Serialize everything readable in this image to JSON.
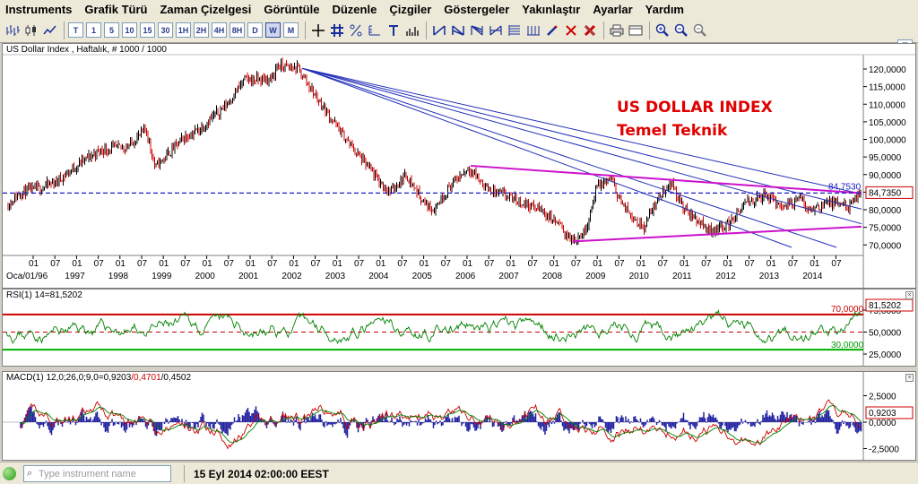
{
  "menu": [
    "Instruments",
    "Grafik Türü",
    "Zaman Çizelgesi",
    "Görüntüle",
    "Düzenle",
    "Çizgiler",
    "Göstergeler",
    "Yakınlaştır",
    "Ayarlar",
    "Yardım"
  ],
  "toolbar": {
    "periods": [
      "T",
      "1",
      "5",
      "10",
      "15",
      "30",
      "1H",
      "2H",
      "4H",
      "8H",
      "D",
      "W",
      "M"
    ],
    "active_period": "W"
  },
  "main_panel": {
    "title": "US Dollar Index , Haftalık, # 1000 / 1000",
    "headline_1": "US DOLLAR INDEX",
    "headline_2": "Temel Teknik",
    "current_price_tag": "84,7350",
    "hline_label": "84,7530",
    "price_axis": [
      "120,0000",
      "115,0000",
      "110,0000",
      "105,0000",
      "100,0000",
      "95,0000",
      "90,0000",
      "85,0000",
      "80,0000",
      "75,0000",
      "70,0000"
    ],
    "month_ticks": [
      "01",
      "07",
      "01",
      "07",
      "01",
      "07",
      "01",
      "07",
      "01",
      "07",
      "01",
      "07",
      "01",
      "07",
      "01",
      "07",
      "01",
      "07",
      "01",
      "07",
      "01",
      "07",
      "01",
      "07",
      "01",
      "07",
      "01",
      "07",
      "01",
      "07",
      "01",
      "07",
      "01",
      "07",
      "01",
      "07",
      "01",
      "07"
    ],
    "year_labels": [
      "Oca/01/96",
      "1997",
      "1998",
      "1999",
      "2000",
      "2001",
      "2002",
      "2003",
      "2004",
      "2005",
      "2006",
      "2007",
      "2008",
      "2009",
      "2010",
      "2011",
      "2012",
      "2013",
      "2014"
    ]
  },
  "rsi_panel": {
    "title": "RSI(1) 14=81,5202",
    "value_tag": "81,5202",
    "level_high": "70,0000",
    "level_low": "30,0000",
    "axis": [
      "75,0000",
      "50,0000",
      "25,0000"
    ]
  },
  "macd_panel": {
    "title_main": "MACD(1) 12,0;26,0;9,0=0,9203",
    "title_signal": "/0,4701",
    "title_hist": "/0,4502",
    "value_tag": "0,9203",
    "axis": [
      "2,5000",
      "0,0000",
      "-2,5000"
    ]
  },
  "status": {
    "search_placeholder": "Type instrument name",
    "timestamp": "15 Eyl 2014 02:00:00 EEST"
  },
  "colors": {
    "price_line": "#000000",
    "price_down": "#cc0000",
    "fan_lines": "#2230b8",
    "channel": "#cc11cc",
    "hline": "#1a1ac8",
    "rsi_line": "#008000",
    "rsi_high": "#cc0000",
    "rsi_low": "#00b000",
    "macd_line": "#cc0000",
    "signal_line": "#008000",
    "histogram": "#2020a0"
  }
}
